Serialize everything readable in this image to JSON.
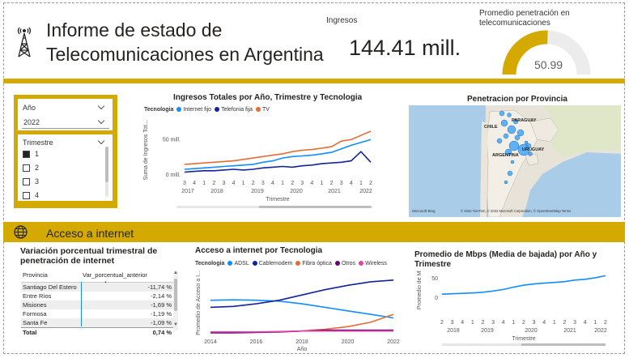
{
  "header": {
    "title_line1": "Informe de estado de",
    "title_line2": "Telecomunicaciones en Argentina",
    "logo_icon": "antenna-tower-icon"
  },
  "kpi_ingresos": {
    "label": "Ingresos",
    "value": "144.41 mill."
  },
  "kpi_penetracion": {
    "label_line1": "Promedio penetración en",
    "label_line2": "telecomunicaciones",
    "value": "50.99",
    "fraction": 0.51
  },
  "slicers": {
    "year": {
      "label": "Año",
      "value": "2022"
    },
    "quarter": {
      "label": "Trimestre",
      "options": [
        {
          "label": "1",
          "checked": true
        },
        {
          "label": "2",
          "checked": false
        },
        {
          "label": "3",
          "checked": false
        },
        {
          "label": "4",
          "checked": false
        }
      ]
    }
  },
  "section": {
    "label": "Acceso a internet",
    "icon": "globe-icon"
  },
  "colors": {
    "gold": "#d4aa00",
    "blue": "#118dff",
    "navy": "#12239e",
    "orange": "#e66c37",
    "purple": "#6b007b",
    "pink": "#e044a7"
  },
  "map": {
    "title": "Penetracion por Provincia",
    "labels": [
      "PARAGUAY",
      "CHILE",
      "URUGUAY",
      "ARGENTINA"
    ],
    "attribution_left": "Microsoft Bing",
    "attribution_right": "© 2022 TomTom, © 2022 Microsoft Corporation, © OpenStreetMap  Terms"
  },
  "table": {
    "title_line1": "Variación porcentual trimestral de",
    "title_line2": "penetración de internet",
    "headers": [
      "Provincia",
      "Var_porcentual_anterior"
    ],
    "rows": [
      [
        "Santiago Del Estero",
        "-11,74 %"
      ],
      [
        "Entre Ríos",
        "-2,14 %"
      ],
      [
        "Misiones",
        "-1,69 %"
      ],
      [
        "Formosa",
        "-1,19 %"
      ],
      [
        "Santa Fe",
        "-1,09 %"
      ]
    ],
    "total": [
      "Total",
      "0,74 %"
    ]
  },
  "chart_data": [
    {
      "type": "line",
      "title": "Ingresos Totales por Año, Trimestre y Tecnologia",
      "legend_title": "Tecnologia",
      "xlabel": "Trimestre",
      "ylabel": "Suma de Ingresos Tot...",
      "ytick_labels": [
        "0 mill.",
        "50 mill."
      ],
      "ylim": [
        0,
        70
      ],
      "x_quarter_labels": [
        "3",
        "4",
        "1",
        "2",
        "3",
        "4",
        "1",
        "2",
        "3",
        "4",
        "1",
        "2",
        "3",
        "4",
        "1",
        "2",
        "3",
        "4",
        "1",
        "2"
      ],
      "x_year_labels": [
        "2017",
        "2018",
        "2019",
        "2020",
        "2021",
        "2022"
      ],
      "series": [
        {
          "name": "Internet fijo",
          "color": "#118dff",
          "values": [
            8,
            9,
            10,
            11,
            12,
            13,
            14,
            15,
            18,
            20,
            24,
            26,
            27,
            28,
            30,
            32,
            37,
            42,
            46,
            50
          ]
        },
        {
          "name": "Telefonia fija",
          "color": "#12239e",
          "values": [
            4,
            5,
            6,
            6,
            7,
            8,
            7,
            8,
            10,
            11,
            12,
            11,
            13,
            14,
            16,
            17,
            18,
            20,
            33,
            18
          ]
        },
        {
          "name": "TV",
          "color": "#e66c37",
          "values": [
            15,
            16,
            17,
            18,
            19,
            20,
            22,
            24,
            26,
            28,
            30,
            33,
            35,
            36,
            38,
            40,
            48,
            50,
            56,
            62
          ]
        }
      ]
    },
    {
      "type": "line",
      "title": "Acceso a internet por Tecnologia",
      "legend_title": "Tecnologia",
      "xlabel": "Año",
      "ylabel": "Promedio de Acceso a I...",
      "xlim": [
        2014,
        2022
      ],
      "x_ticks": [
        2014,
        2016,
        2018,
        2020,
        2022
      ],
      "x": [
        2014,
        2015,
        2016,
        2017,
        2018,
        2019,
        2020,
        2021,
        2022
      ],
      "series": [
        {
          "name": "ADSL",
          "color": "#118dff",
          "values": [
            38,
            38.5,
            38,
            37,
            34,
            30,
            26,
            22,
            18
          ]
        },
        {
          "name": "Cablemodem",
          "color": "#12239e",
          "values": [
            30,
            31,
            34,
            38,
            44,
            50,
            55,
            59,
            61
          ]
        },
        {
          "name": "Fibra óptica",
          "color": "#e66c37",
          "values": [
            2,
            2,
            2,
            2,
            3,
            5,
            8,
            13,
            22
          ]
        },
        {
          "name": "Otros",
          "color": "#6b007b",
          "values": [
            1,
            1,
            1.5,
            2,
            3,
            4,
            4,
            4,
            4
          ]
        },
        {
          "name": "Wireless",
          "color": "#e044a7",
          "values": [
            2,
            2,
            2,
            2.5,
            3,
            3,
            3,
            3,
            3
          ]
        }
      ]
    },
    {
      "type": "line",
      "title": "Promedio de Mbps (Media de bajada) por Año y Trimestre",
      "xlabel": "Trimestre",
      "ylabel": "Promedio de Mb...",
      "ytick_labels": [
        "50",
        "0"
      ],
      "ylim": [
        0,
        60
      ],
      "x_quarter_labels": [
        "2",
        "3",
        "4",
        "1",
        "2",
        "3",
        "4",
        "1",
        "2",
        "3",
        "4",
        "1",
        "2",
        "3",
        "4",
        "1",
        "2"
      ],
      "x_year_labels": [
        "2018",
        "2019",
        "2020",
        "2021",
        "2022"
      ],
      "series": [
        {
          "name": "Mbps",
          "color": "#118dff",
          "values": [
            10,
            11,
            12,
            13,
            15,
            18,
            22,
            28,
            33,
            36,
            38,
            40,
            42,
            46,
            48,
            52,
            57
          ]
        }
      ]
    }
  ]
}
